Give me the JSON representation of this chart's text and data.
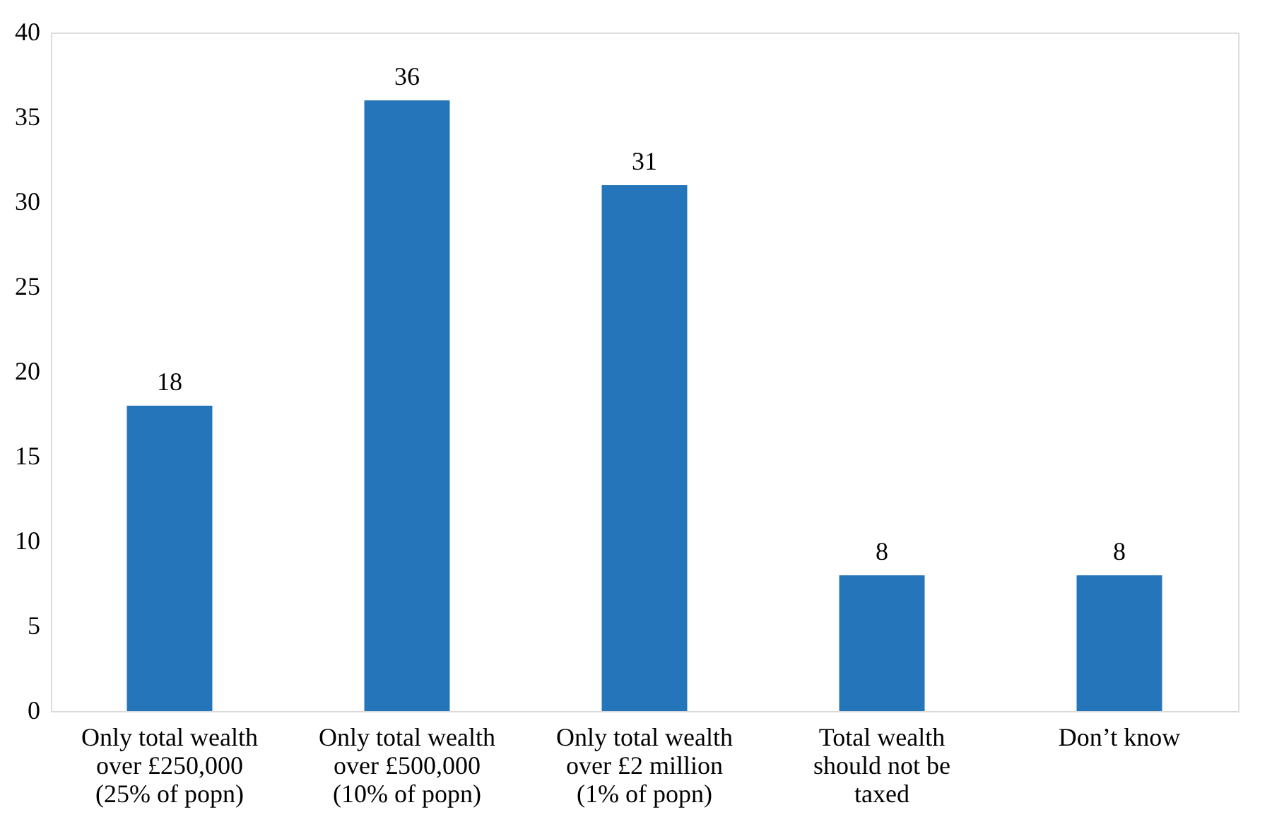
{
  "chart_data": {
    "type": "bar",
    "categories": [
      "Only total wealth\nover £250,000\n(25% of popn)",
      "Only total wealth\nover £500,000\n(10% of popn)",
      "Only total wealth\nover £2 million\n(1% of popn)",
      "Total wealth\nshould not be\ntaxed",
      "Don’t know"
    ],
    "values": [
      18,
      36,
      31,
      8,
      8
    ],
    "color": "#2475ba",
    "ylim": [
      0,
      40
    ],
    "yticks": [
      0,
      5,
      10,
      15,
      20,
      25,
      30,
      35,
      40
    ],
    "grid": false,
    "data_labels": true
  }
}
